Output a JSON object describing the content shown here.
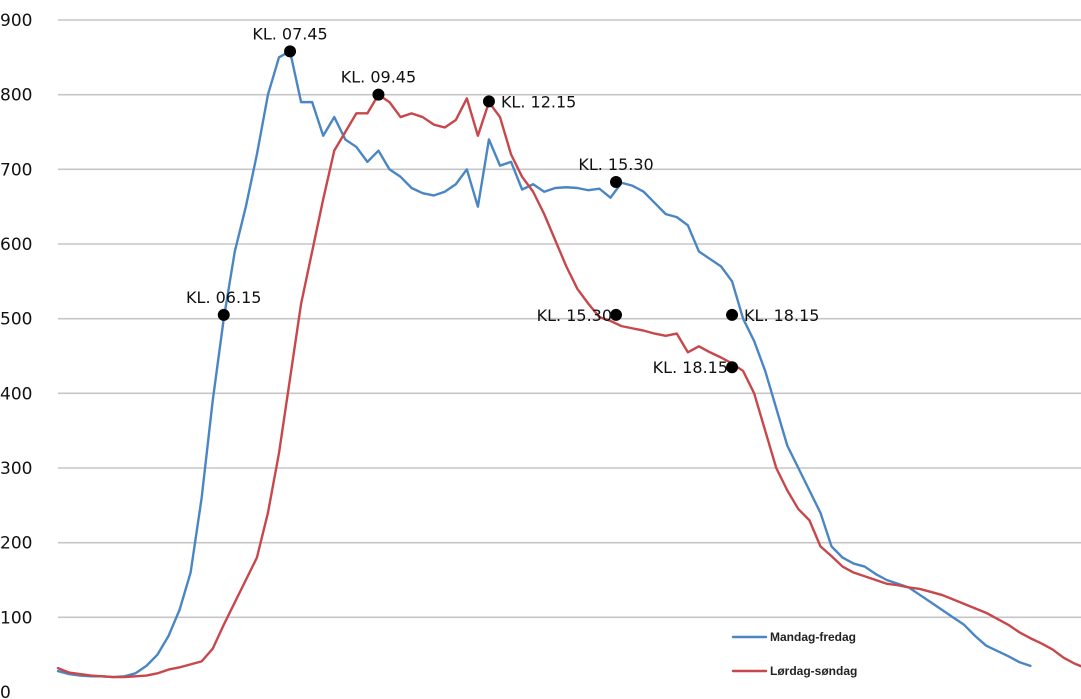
{
  "chart_data": {
    "type": "line",
    "title": "",
    "xlabel": "",
    "ylabel": "",
    "ylim": [
      0,
      900
    ],
    "yticks": [
      "0",
      "100",
      "200",
      "300",
      "400",
      "500",
      "600",
      "700",
      "800",
      "900"
    ],
    "grid": true,
    "legend": "bottom-right",
    "series": [
      {
        "name": "Mandag-fredag",
        "color": "#4a86c4",
        "values": [
          28,
          24,
          22,
          21,
          21,
          20,
          21,
          25,
          35,
          50,
          75,
          110,
          160,
          260,
          390,
          500,
          590,
          650,
          720,
          800,
          850,
          858,
          790,
          790,
          745,
          770,
          740,
          730,
          710,
          725,
          700,
          690,
          675,
          668,
          665,
          670,
          680,
          700,
          650,
          740,
          705,
          710,
          673,
          680,
          670,
          675,
          676,
          675,
          672,
          674,
          662,
          682,
          678,
          670,
          655,
          640,
          636,
          625,
          590,
          580,
          570,
          550,
          500,
          470,
          430,
          380,
          330,
          300,
          270,
          240,
          195,
          180,
          172,
          168,
          158,
          150,
          145,
          140,
          130,
          120,
          110,
          100,
          90,
          75,
          62,
          55,
          48,
          40,
          35
        ]
      },
      {
        "name": "Lørdag-søndag",
        "color": "#c8474b",
        "values": [
          32,
          26,
          24,
          22,
          21,
          20,
          20,
          21,
          22,
          25,
          30,
          33,
          37,
          41,
          58,
          90,
          120,
          150,
          180,
          240,
          320,
          420,
          520,
          590,
          660,
          725,
          750,
          775,
          775,
          800,
          790,
          770,
          775,
          770,
          760,
          756,
          766,
          795,
          745,
          790,
          770,
          720,
          690,
          670,
          640,
          605,
          570,
          540,
          520,
          502,
          497,
          490,
          487,
          484,
          480,
          477,
          480,
          455,
          463,
          455,
          448,
          440,
          430,
          400,
          350,
          300,
          270,
          245,
          230,
          195,
          182,
          168,
          160,
          155,
          150,
          145,
          143,
          140,
          138,
          134,
          130,
          124,
          118,
          112,
          106,
          98,
          90,
          80,
          72,
          65,
          57,
          46,
          38,
          32
        ],
        "x_offset": 0
      }
    ],
    "annotations": [
      {
        "label": "KL. 06.15",
        "x": 15,
        "y": 505,
        "side": "above"
      },
      {
        "label": "KL. 07.45",
        "x": 21,
        "y": 858,
        "side": "above"
      },
      {
        "label": "KL. 09.45",
        "x": 29,
        "y": 800,
        "side": "above"
      },
      {
        "label": "KL. 12.15",
        "x": 39,
        "y": 791,
        "side": "right"
      },
      {
        "label": "KL. 15.30",
        "x": 50.5,
        "y": 683,
        "side": "above"
      },
      {
        "label": "KL. 15.30",
        "x": 50.5,
        "y": 505,
        "side": "left"
      },
      {
        "label": "KL. 18.15",
        "x": 61,
        "y": 505,
        "side": "right"
      },
      {
        "label": "KL. 18.15",
        "x": 61,
        "y": 435,
        "side": "left"
      }
    ]
  }
}
